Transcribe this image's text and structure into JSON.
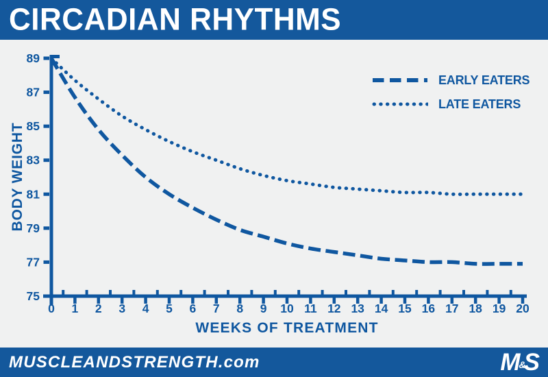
{
  "header": {
    "title": "CIRCADIAN RHYTHMS"
  },
  "colors": {
    "brand_blue": "#14589C",
    "ink_blue": "#0F57A0",
    "chart_bg": "#F0F1F1",
    "text_white": "#FFFFFF"
  },
  "chart_data": {
    "type": "line",
    "title": "CIRCADIAN RHYTHMS",
    "xlabel": "WEEKS OF TREATMENT",
    "ylabel": "BODY WEIGHT",
    "xlim": [
      0,
      20
    ],
    "ylim": [
      75,
      89
    ],
    "grid": false,
    "legend_position": "top-right",
    "x": [
      0,
      1,
      2,
      3,
      4,
      5,
      6,
      7,
      8,
      9,
      10,
      11,
      12,
      13,
      14,
      15,
      16,
      17,
      18,
      19,
      20
    ],
    "xticks_major": [
      0,
      1,
      2,
      3,
      4,
      5,
      6,
      7,
      8,
      9,
      10,
      11,
      12,
      13,
      14,
      15,
      16,
      17,
      18,
      19,
      20
    ],
    "xticks_minor": [
      0.5,
      1.5,
      2.5,
      3.5,
      4.5,
      5.5,
      6.5,
      7.5,
      8.5,
      9.5,
      10.5,
      11.5,
      12.5,
      13.5,
      14.5,
      15.5,
      16.5,
      17.5,
      18.5,
      19.5
    ],
    "yticks_major": [
      75,
      77,
      79,
      81,
      83,
      85,
      87,
      89
    ],
    "series": [
      {
        "name": "EARLY EATERS",
        "line_style": "dashed",
        "values": [
          89.0,
          86.7,
          84.8,
          83.3,
          82.0,
          81.0,
          80.2,
          79.5,
          78.9,
          78.5,
          78.1,
          77.8,
          77.6,
          77.4,
          77.2,
          77.1,
          77.0,
          77.0,
          76.9,
          76.9,
          76.9
        ]
      },
      {
        "name": "LATE EATERS",
        "line_style": "dotted",
        "values": [
          89.0,
          87.7,
          86.6,
          85.6,
          84.8,
          84.1,
          83.5,
          83.0,
          82.5,
          82.1,
          81.8,
          81.6,
          81.4,
          81.3,
          81.2,
          81.1,
          81.1,
          81.0,
          81.0,
          81.0,
          81.0
        ]
      }
    ]
  },
  "footer": {
    "site": "MUSCLEANDSTRENGTH.com",
    "logo_m": "M",
    "logo_amp": "&",
    "logo_s": "S"
  }
}
